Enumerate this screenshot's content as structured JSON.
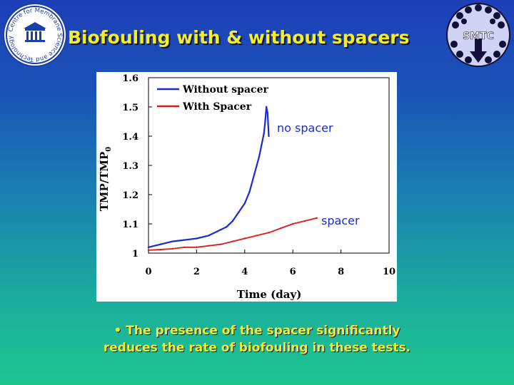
{
  "slide": {
    "title": "Biofouling with & without spacers",
    "caption_line1": "• The presence of the spacer significantly",
    "caption_line2": "reduces the rate of biofouling in these tests."
  },
  "logos": {
    "left_text": "Centre for Membrane Science and Technology",
    "right_text": "SMTC"
  },
  "colors": {
    "title": "#f2ee2a",
    "without_spacer": "#1a2bd6",
    "with_spacer": "#e01818",
    "annotation": "#1a2bd6"
  },
  "chart_data": {
    "type": "line",
    "xlabel": "Time (day)",
    "ylabel": "TMP/TMP",
    "ylabel_subscript": "0",
    "xlim": [
      0,
      10
    ],
    "ylim": [
      1,
      1.6
    ],
    "xticks": [
      "0",
      "2",
      "4",
      "6",
      "8",
      "10"
    ],
    "yticks": [
      "1",
      "1.1",
      "1.2",
      "1.3",
      "1.4",
      "1.5",
      "1.6"
    ],
    "legend_position": "top-left",
    "annotations": [
      "no spacer",
      "spacer"
    ],
    "series": [
      {
        "name": "Without spacer",
        "color": "#1a2bd6",
        "x": [
          0,
          0.5,
          1,
          1.5,
          2,
          2.5,
          3,
          3.25,
          3.5,
          3.75,
          4,
          4.2,
          4.4,
          4.5,
          4.6,
          4.7,
          4.8,
          4.85,
          4.9,
          4.95,
          5.0
        ],
        "y": [
          1.02,
          1.03,
          1.04,
          1.045,
          1.05,
          1.06,
          1.08,
          1.09,
          1.11,
          1.14,
          1.17,
          1.21,
          1.27,
          1.3,
          1.33,
          1.37,
          1.41,
          1.45,
          1.5,
          1.48,
          1.4
        ]
      },
      {
        "name": "With Spacer",
        "color": "#e01818",
        "x": [
          0,
          0.5,
          1,
          1.5,
          2,
          2.5,
          3,
          3.5,
          4,
          4.5,
          5,
          5.5,
          6,
          6.5,
          7
        ],
        "y": [
          1.01,
          1.012,
          1.015,
          1.02,
          1.02,
          1.025,
          1.03,
          1.04,
          1.05,
          1.06,
          1.07,
          1.085,
          1.1,
          1.11,
          1.12
        ]
      }
    ]
  }
}
